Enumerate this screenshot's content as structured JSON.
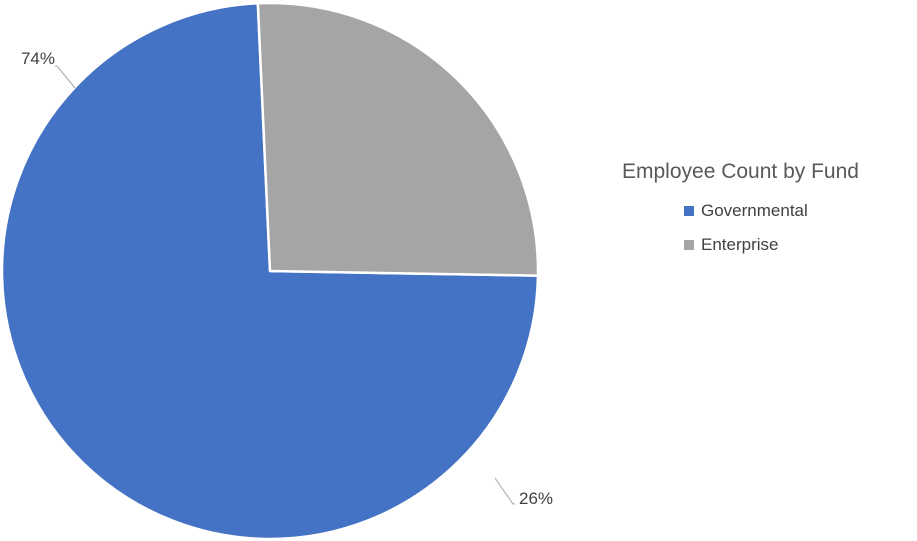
{
  "chart_data": {
    "type": "pie",
    "title": "Employee Count by Fund",
    "categories": [
      "Governmental",
      "Enterprise"
    ],
    "values": [
      74,
      26
    ],
    "data_labels": [
      "74%",
      "26%"
    ],
    "colors": [
      "#4472C4",
      "#A5A5A5"
    ],
    "start_angle_deg": 91,
    "legend_position": "right"
  }
}
